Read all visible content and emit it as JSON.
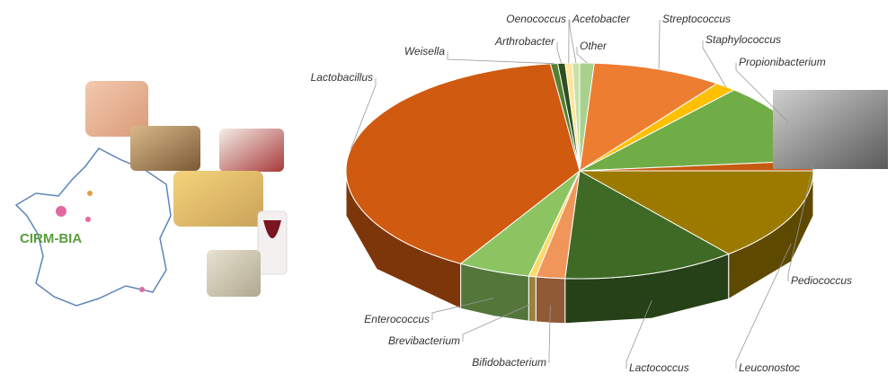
{
  "caption": "CIRM-BIA",
  "chart_data": {
    "type": "pie3d",
    "categories": [
      "Other",
      "Streptococcus",
      "Staphylococcus",
      "Propionibacterium",
      "Pediococcus",
      "Leuconostoc",
      "Lactococcus",
      "Bifidobacterium",
      "Brevibacterium",
      "Enterococcus",
      "Lactobacillus",
      "Weisella",
      "Arthrobacter",
      "Oenococcus",
      "Acetobacter"
    ],
    "values": [
      1,
      9,
      1.5,
      12,
      1.5,
      14,
      12,
      2,
      0.5,
      5,
      39.5,
      0.5,
      0.5,
      0.5,
      0.5
    ],
    "colors": [
      "#a9d18e",
      "#ed7d31",
      "#ffc000",
      "#70ad47",
      "#c55a11",
      "#9c7a00",
      "#3f6a26",
      "#f0965a",
      "#ffd966",
      "#8cc462",
      "#d05a10",
      "#548235",
      "#2f4f1e",
      "#ffe699",
      "#c9e0a8"
    ]
  }
}
